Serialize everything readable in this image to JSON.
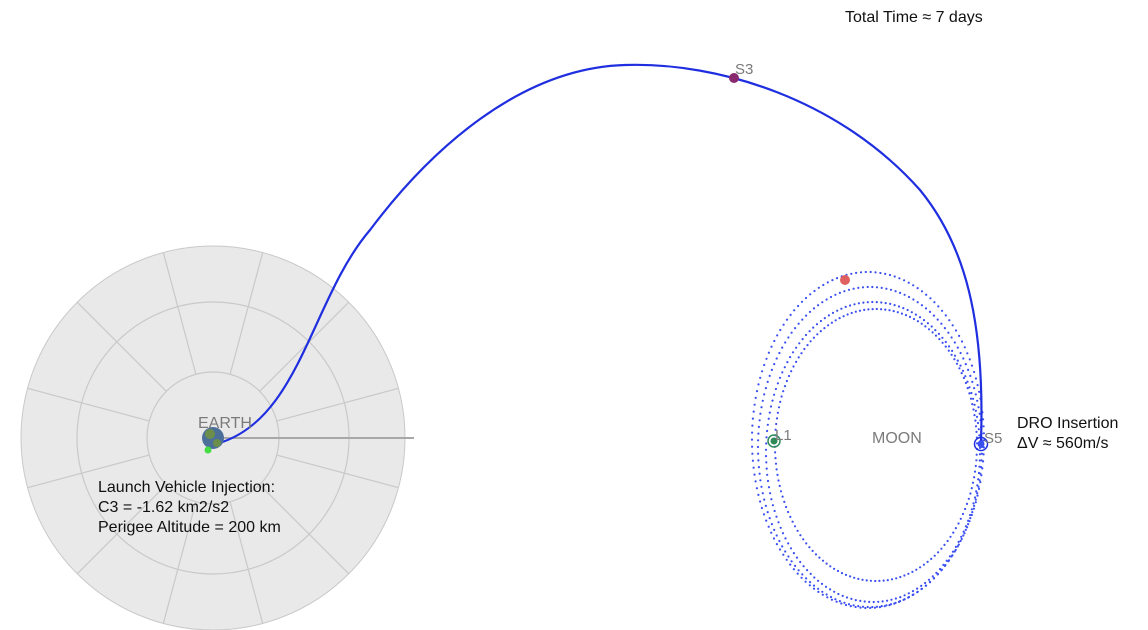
{
  "colors": {
    "trajectory": "#1f2fe0",
    "dro_orbit": "#3a4ff0",
    "earth_disk": "#e9e9e9",
    "earth_grid": "#c9c9c9",
    "axis_line": "#a8a8a8",
    "label_gray": "#7b7b7b",
    "s3_marker": "#8a2a6e",
    "l1_marker": "#2e8b57",
    "red_marker": "#e06060",
    "green_marker": "#44dd44",
    "earth_blue": "#4c6f9a",
    "earth_green": "#6b8f4a",
    "text": "#111111"
  },
  "labels": {
    "total_time": "Total Time ≈  7 days",
    "earth": "EARTH",
    "moon": "MOON",
    "l1": "L1",
    "s3": "S3",
    "s5": "S5",
    "launch": {
      "line1": "Launch Vehicle Injection:",
      "line2": "C3 = -1.62 km2/s2",
      "line3": "Perigee Altitude = 200 km"
    },
    "dro": {
      "line1": "DRO Insertion",
      "line2": "ΔV ≈ 560m/s"
    }
  },
  "icons": {
    "earth": "earth-globe-icon",
    "s3": "s3-marker-icon",
    "l1": "l1-marker-icon",
    "s5": "s5-marker-icon"
  }
}
